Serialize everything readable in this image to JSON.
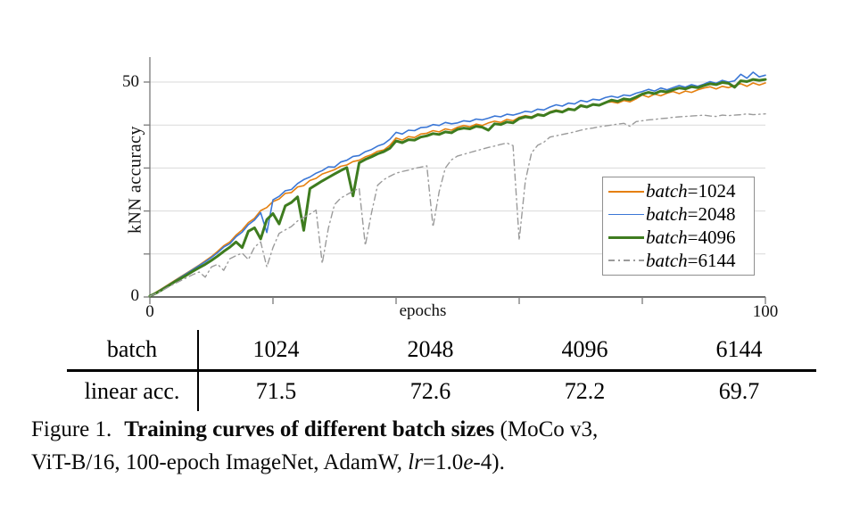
{
  "chart_data": {
    "type": "line",
    "title": "",
    "xlabel": "epochs",
    "ylabel": "kNN accuracy",
    "xlim": [
      0,
      100
    ],
    "ylim": [
      0,
      56
    ],
    "x_ticks": [
      0,
      20,
      40,
      60,
      80,
      100
    ],
    "y_ticks": [
      0,
      10,
      20,
      30,
      40,
      50
    ],
    "shown_tick_labels": {
      "y50": "50",
      "y0": "0",
      "x0": "0",
      "x100": "100"
    },
    "grid": "horizontal-light",
    "legend_position": "right-middle",
    "x_start": 0,
    "x_step": 1,
    "colors": {
      "grid": "#d9d9d9",
      "axis": "#7a7a7a",
      "x_axis": "#5a5a5a"
    },
    "series": [
      {
        "name": "batch=1024",
        "legend_word": "batch",
        "legend_value": "=1024",
        "color": "#e5800f",
        "width": 1.6,
        "dash": "",
        "values": [
          0.2,
          1.1,
          2.0,
          2.9,
          3.8,
          4.7,
          5.6,
          6.5,
          7.4,
          8.4,
          9.4,
          10.6,
          11.9,
          12.8,
          14.4,
          15.6,
          17.3,
          18.3,
          20.1,
          20.8,
          22.2,
          22.8,
          24.1,
          24.3,
          25.6,
          25.9,
          27.1,
          27.6,
          28.6,
          29.1,
          29.6,
          30.4,
          30.7,
          31.5,
          31.8,
          32.6,
          33.1,
          33.9,
          34.2,
          35.3,
          37.0,
          36.5,
          37.3,
          37.1,
          37.9,
          38.1,
          38.7,
          38.4,
          39.1,
          38.8,
          39.5,
          39.9,
          39.6,
          40.2,
          39.9,
          40.5,
          40.9,
          40.6,
          41.3,
          41.0,
          41.8,
          42.2,
          41.9,
          42.6,
          42.3,
          43.1,
          43.5,
          43.2,
          43.9,
          43.6,
          44.7,
          44.3,
          44.9,
          44.6,
          45.2,
          45.4,
          45.1,
          45.7,
          45.4,
          46.1,
          47.0,
          46.5,
          47.2,
          46.8,
          47.4,
          47.8,
          47.3,
          47.9,
          47.6,
          48.2,
          48.6,
          48.9,
          48.4,
          49.0,
          48.7,
          49.2,
          49.6,
          49.0,
          49.8,
          49.3,
          49.8
        ]
      },
      {
        "name": "batch=2048",
        "legend_word": "batch",
        "legend_value": "=2048",
        "color": "#3b77d6",
        "width": 1.6,
        "dash": "",
        "values": [
          0.2,
          1.0,
          1.9,
          2.8,
          3.7,
          4.6,
          5.5,
          6.4,
          7.3,
          8.2,
          9.2,
          10.3,
          11.6,
          12.4,
          14.0,
          15.1,
          16.8,
          17.9,
          19.6,
          15.0,
          22.6,
          23.4,
          24.7,
          25.0,
          26.4,
          27.3,
          27.9,
          28.8,
          29.4,
          30.3,
          30.2,
          31.4,
          31.8,
          32.7,
          32.9,
          33.8,
          34.3,
          35.1,
          35.6,
          36.7,
          38.3,
          37.9,
          38.8,
          38.7,
          39.4,
          39.5,
          40.1,
          39.9,
          40.6,
          40.3,
          40.5,
          41.0,
          40.8,
          41.4,
          41.2,
          41.6,
          42.1,
          41.9,
          42.5,
          42.3,
          42.7,
          43.2,
          43.0,
          43.7,
          43.5,
          44.2,
          44.7,
          44.4,
          45.1,
          44.9,
          45.7,
          45.4,
          46.0,
          45.8,
          46.4,
          46.7,
          46.4,
          47.0,
          46.8,
          47.4,
          47.8,
          48.3,
          47.9,
          48.6,
          48.2,
          48.7,
          49.2,
          48.8,
          49.4,
          49.0,
          49.5,
          50.1,
          49.7,
          50.4,
          50.0,
          50.3,
          51.8,
          50.9,
          52.3,
          51.2,
          51.6
        ]
      },
      {
        "name": "batch=4096",
        "legend_word": "batch",
        "legend_value": "=4096",
        "color": "#3e7c1f",
        "width": 3,
        "dash": "",
        "values": [
          0.2,
          0.9,
          1.7,
          2.6,
          3.5,
          4.3,
          5.1,
          6.0,
          6.8,
          7.6,
          8.5,
          9.5,
          10.6,
          11.6,
          12.8,
          11.5,
          15.3,
          16.1,
          13.5,
          18.0,
          19.4,
          17.0,
          21.2,
          22.0,
          23.3,
          15.5,
          25.2,
          26.1,
          27.0,
          27.8,
          28.6,
          29.4,
          30.1,
          23.5,
          31.2,
          32.0,
          32.6,
          33.3,
          33.8,
          34.6,
          36.3,
          35.9,
          36.6,
          36.5,
          37.2,
          37.5,
          38.0,
          37.8,
          38.4,
          38.2,
          39.0,
          39.3,
          39.1,
          39.7,
          39.5,
          38.8,
          40.3,
          40.1,
          40.7,
          40.5,
          41.5,
          41.9,
          41.7,
          42.4,
          42.2,
          42.9,
          43.3,
          43.0,
          43.7,
          43.5,
          44.5,
          44.2,
          44.8,
          44.6,
          45.2,
          45.8,
          45.5,
          46.1,
          45.9,
          46.5,
          47.2,
          47.6,
          47.3,
          47.9,
          47.7,
          48.2,
          48.6,
          48.4,
          48.9,
          48.7,
          49.2,
          49.6,
          49.4,
          49.9,
          49.7,
          48.8,
          50.3,
          50.1,
          50.6,
          50.4,
          50.6
        ]
      },
      {
        "name": "batch=6144",
        "legend_word": "batch",
        "legend_value": "=6144",
        "color": "#9b9b9b",
        "width": 1.4,
        "dash": "7 4 1.5 4",
        "values": [
          0.2,
          0.8,
          1.5,
          2.3,
          3.1,
          3.8,
          4.5,
          5.2,
          5.8,
          4.6,
          7.0,
          7.6,
          6.2,
          8.9,
          9.6,
          10.2,
          8.7,
          11.6,
          12.8,
          7.0,
          11.5,
          14.8,
          15.6,
          16.4,
          17.7,
          18.5,
          19.3,
          20.2,
          7.8,
          16.0,
          21.5,
          23.0,
          23.8,
          24.6,
          25.3,
          12.0,
          19.5,
          26.0,
          27.3,
          28.1,
          28.8,
          29.2,
          29.5,
          29.9,
          30.2,
          30.5,
          16.3,
          24.5,
          30.0,
          31.9,
          32.8,
          33.2,
          33.6,
          34.0,
          34.4,
          34.8,
          35.1,
          35.5,
          35.8,
          35.2,
          13.2,
          27.0,
          33.5,
          35.3,
          36.0,
          37.2,
          37.5,
          37.8,
          38.1,
          38.4,
          38.8,
          39.1,
          39.3,
          39.6,
          39.8,
          40.0,
          40.2,
          40.4,
          39.7,
          40.8,
          41.0,
          41.2,
          41.3,
          41.5,
          41.6,
          41.8,
          41.9,
          42.0,
          42.1,
          42.2,
          42.3,
          42.1,
          42.0,
          42.3,
          42.2,
          42.3,
          42.4,
          42.6,
          42.4,
          42.5,
          42.6
        ]
      }
    ]
  },
  "table": {
    "rows": [
      {
        "cells": [
          "batch",
          "1024",
          "2048",
          "4096",
          "6144"
        ]
      },
      {
        "cells": [
          "linear acc.",
          "71.5",
          "72.6",
          "72.2",
          "69.7"
        ]
      }
    ]
  },
  "caption": {
    "line1_label": "Figure 1.",
    "line1_bold": "Training curves of different batch sizes",
    "line1_tail": " (MoCo v3,",
    "line2_pre": "ViT-B/16, 100-epoch ImageNet, AdamW, ",
    "line2_lr": "lr",
    "line2_mid": "=1.0",
    "line2_e": "e",
    "line2_tail": "-4)."
  }
}
